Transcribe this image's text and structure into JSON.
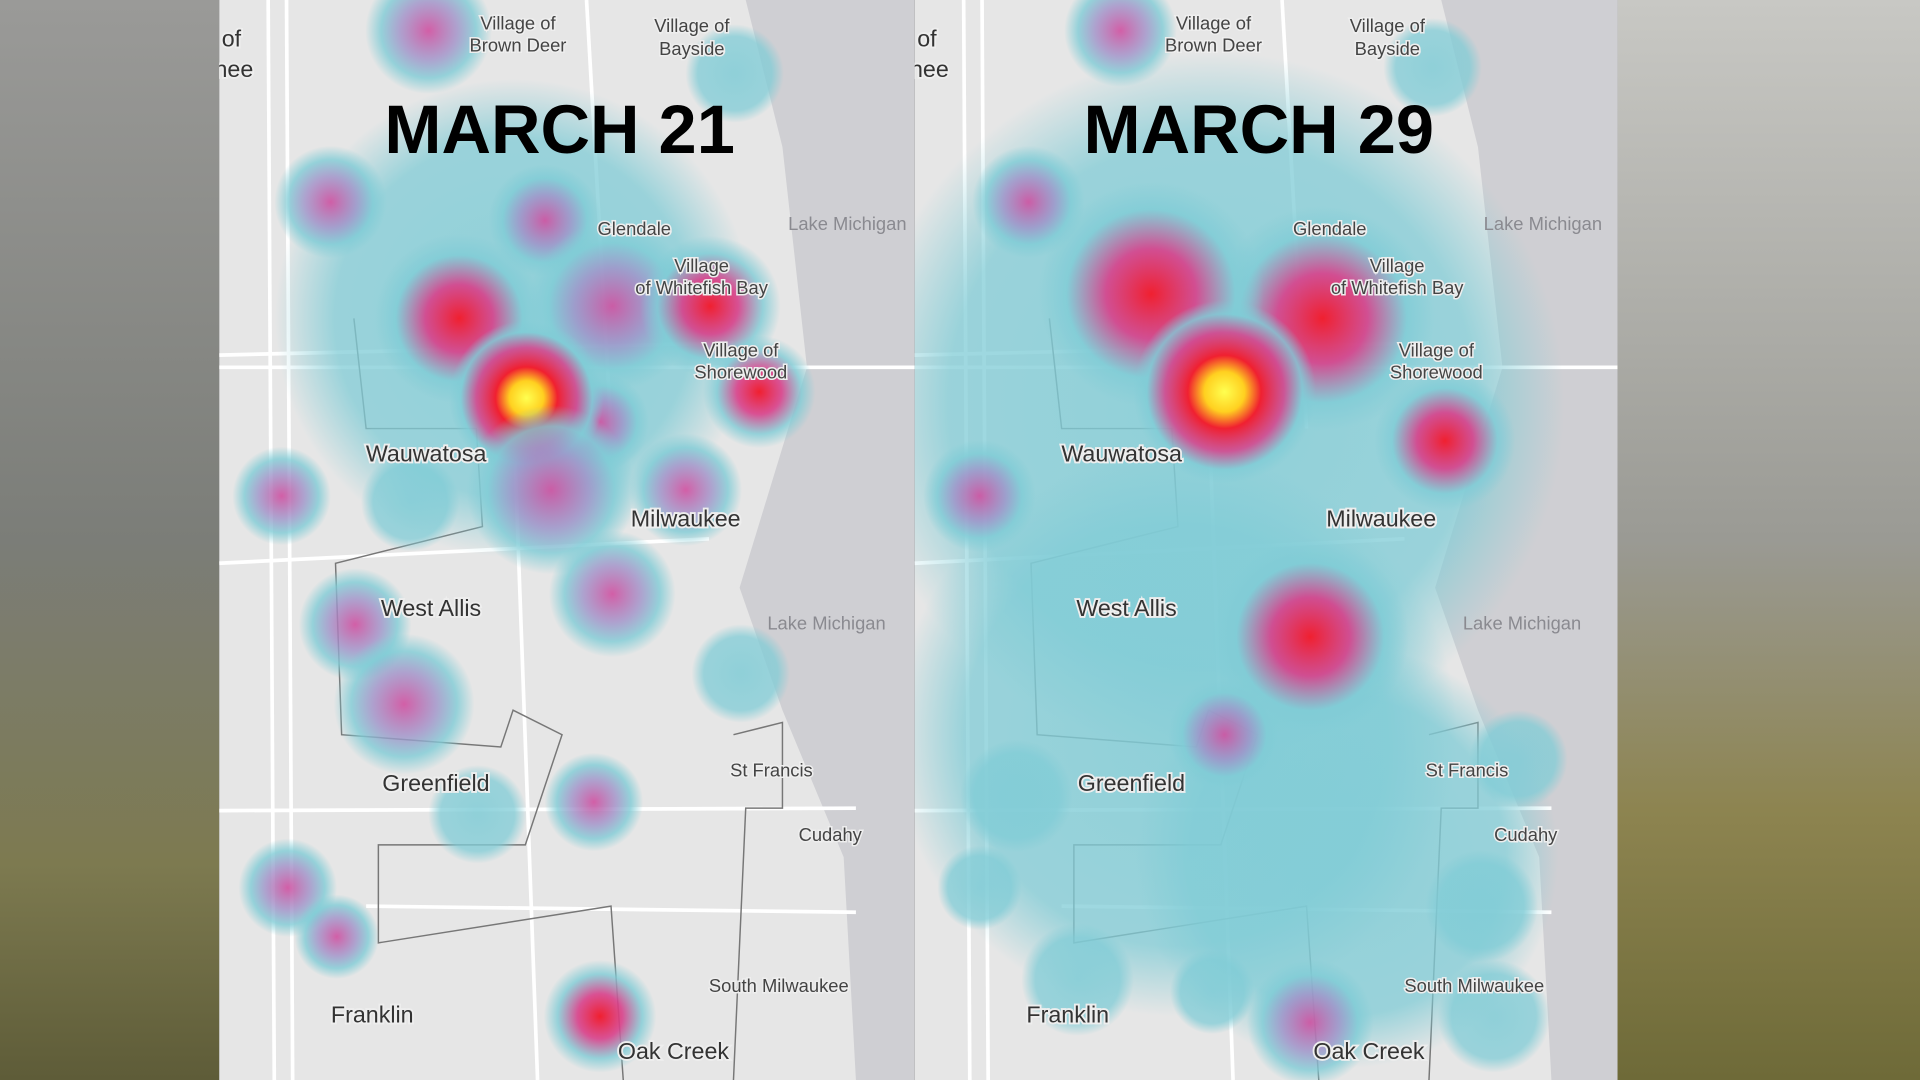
{
  "panels": [
    {
      "title": "MARCH 21",
      "labels": [
        "Village of",
        "Brown Deer",
        "Village of",
        "Bayside",
        "of",
        "nee",
        "Glendale",
        "Lake Michigan",
        "Village",
        "of Whitefish Bay",
        "Village of",
        "Shorewood",
        "Wauwatosa",
        "Milwaukee",
        "West Allis",
        "Lake Michigan",
        "Greenfield",
        "St Francis",
        "Cudahy",
        "South Milwaukee",
        "Franklin",
        "Oak Creek"
      ]
    },
    {
      "title": "MARCH 29",
      "labels": [
        "Village of",
        "Brown Deer",
        "Village of",
        "Bayside",
        "of",
        "nee",
        "Glendale",
        "Lake Michigan",
        "Village",
        "of Whitefish Bay",
        "Village of",
        "Shorewood",
        "Wauwatosa",
        "Milwaukee",
        "West Allis",
        "Lake Michigan",
        "Greenfield",
        "St Francis",
        "Cudahy",
        "South Milwaukee",
        "Franklin",
        "Oak Creek"
      ]
    }
  ]
}
